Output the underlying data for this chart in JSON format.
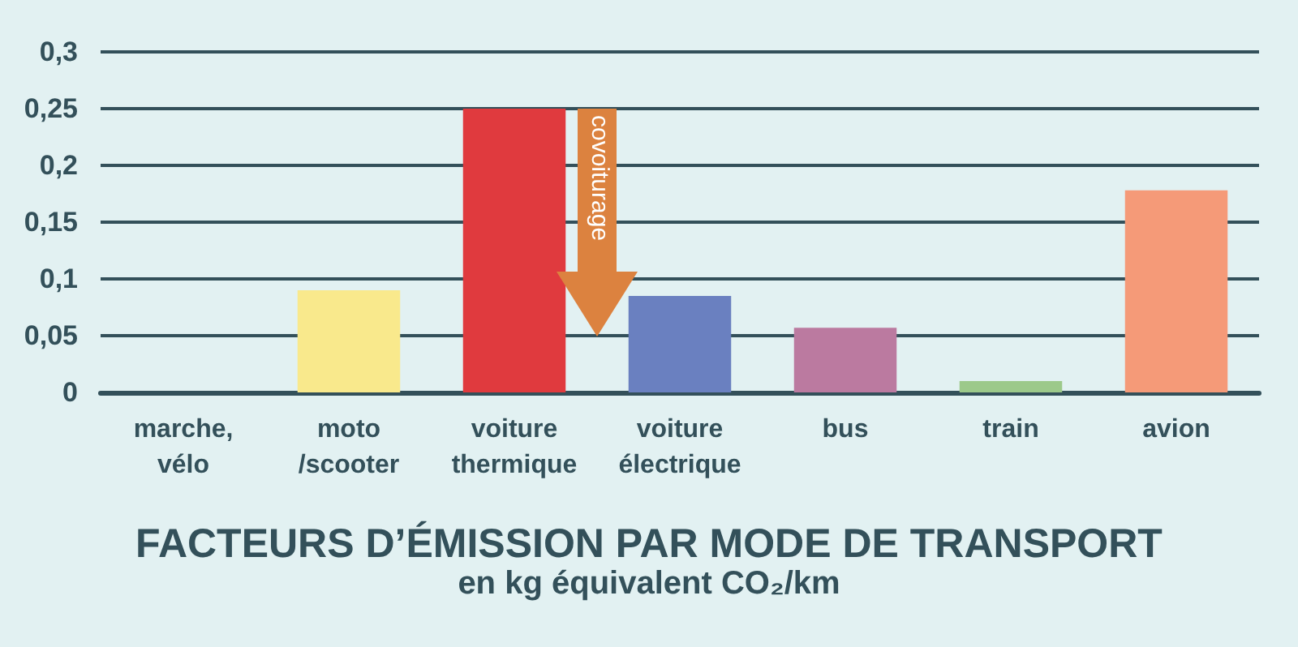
{
  "chart_data": {
    "type": "bar",
    "title": "FACTEURS D’ÉMISSION PAR MODE DE TRANSPORT",
    "subtitle": "en kg équivalent CO₂/km",
    "categories": [
      "marche,\nvélo",
      "moto\n/scooter",
      "voiture\nthermique",
      "voiture\nélectrique",
      "bus",
      "train",
      "avion"
    ],
    "values": [
      0,
      0.09,
      0.25,
      0.085,
      0.057,
      0.01,
      0.178
    ],
    "colors": [
      "#bbbbbb",
      "#f9e98c",
      "#e03a3e",
      "#6a80c0",
      "#bb7aa0",
      "#9cc98a",
      "#f59a78"
    ],
    "annotations": [
      "covoiturage"
    ],
    "ylim": [
      0,
      0.3
    ],
    "yticks": [
      0,
      {
        "value": 0.05,
        "label": "0,05"
      },
      {
        "value": 0.1,
        "label": "0,1"
      },
      {
        "value": 0.15,
        "label": "0,15"
      },
      {
        "value": 0.2,
        "label": "0,2"
      },
      {
        "value": 0.25,
        "label": "0,25"
      },
      {
        "value": 0.3,
        "label": "0,3"
      }
    ],
    "grid": "y"
  }
}
